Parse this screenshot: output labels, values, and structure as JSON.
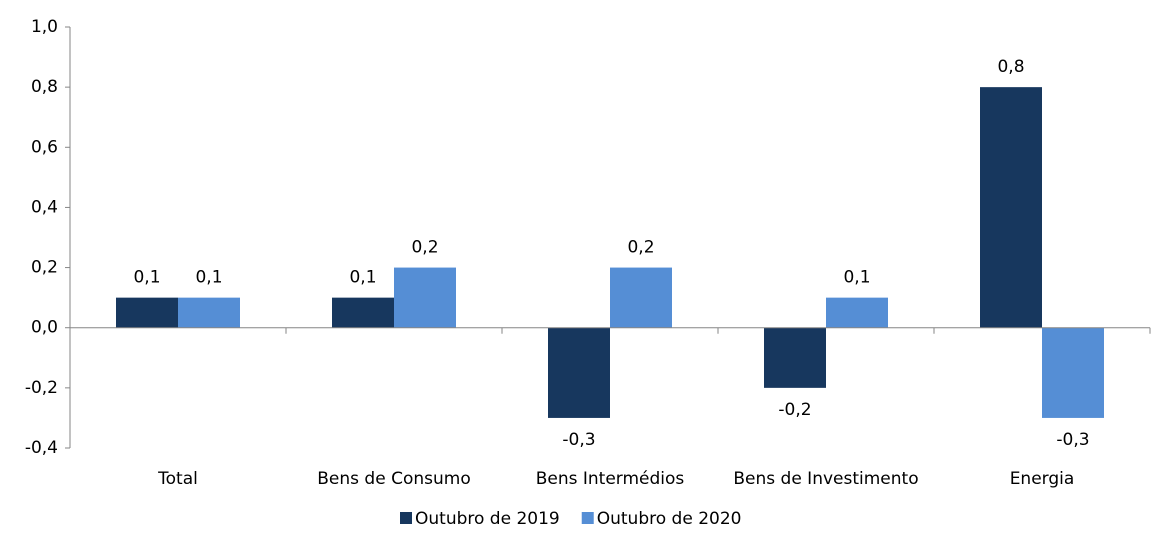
{
  "chart_data": {
    "type": "bar",
    "categories": [
      "Total",
      "Bens de Consumo",
      "Bens Intermédios",
      "Bens de Investimento",
      "Energia"
    ],
    "series": [
      {
        "name": "Outubro de 2019",
        "color": "#17375e",
        "values": [
          0.1,
          0.1,
          -0.3,
          -0.2,
          0.8
        ],
        "value_labels": [
          "0,1",
          "0,1",
          "-0,3",
          "-0,2",
          "0,8"
        ]
      },
      {
        "name": "Outubro de 2020",
        "color": "#558ed5",
        "values": [
          0.1,
          0.2,
          0.2,
          0.1,
          -0.3
        ],
        "value_labels": [
          "0,1",
          "0,2",
          "0,2",
          "0,1",
          "-0,3"
        ]
      }
    ],
    "ylim": [
      -0.4,
      1.0
    ],
    "yticks": [
      {
        "value": -0.4,
        "label": "-0,4"
      },
      {
        "value": -0.2,
        "label": "-0,2"
      },
      {
        "value": 0,
        "label": "0,0"
      },
      {
        "value": 0.2,
        "label": "0,2"
      },
      {
        "value": 0.4,
        "label": "0,4"
      },
      {
        "value": 0.6,
        "label": "0,6"
      },
      {
        "value": 0.8,
        "label": "0,8"
      },
      {
        "value": 1.0,
        "label": "1,0"
      }
    ],
    "grid": false,
    "legend": "bottom"
  }
}
